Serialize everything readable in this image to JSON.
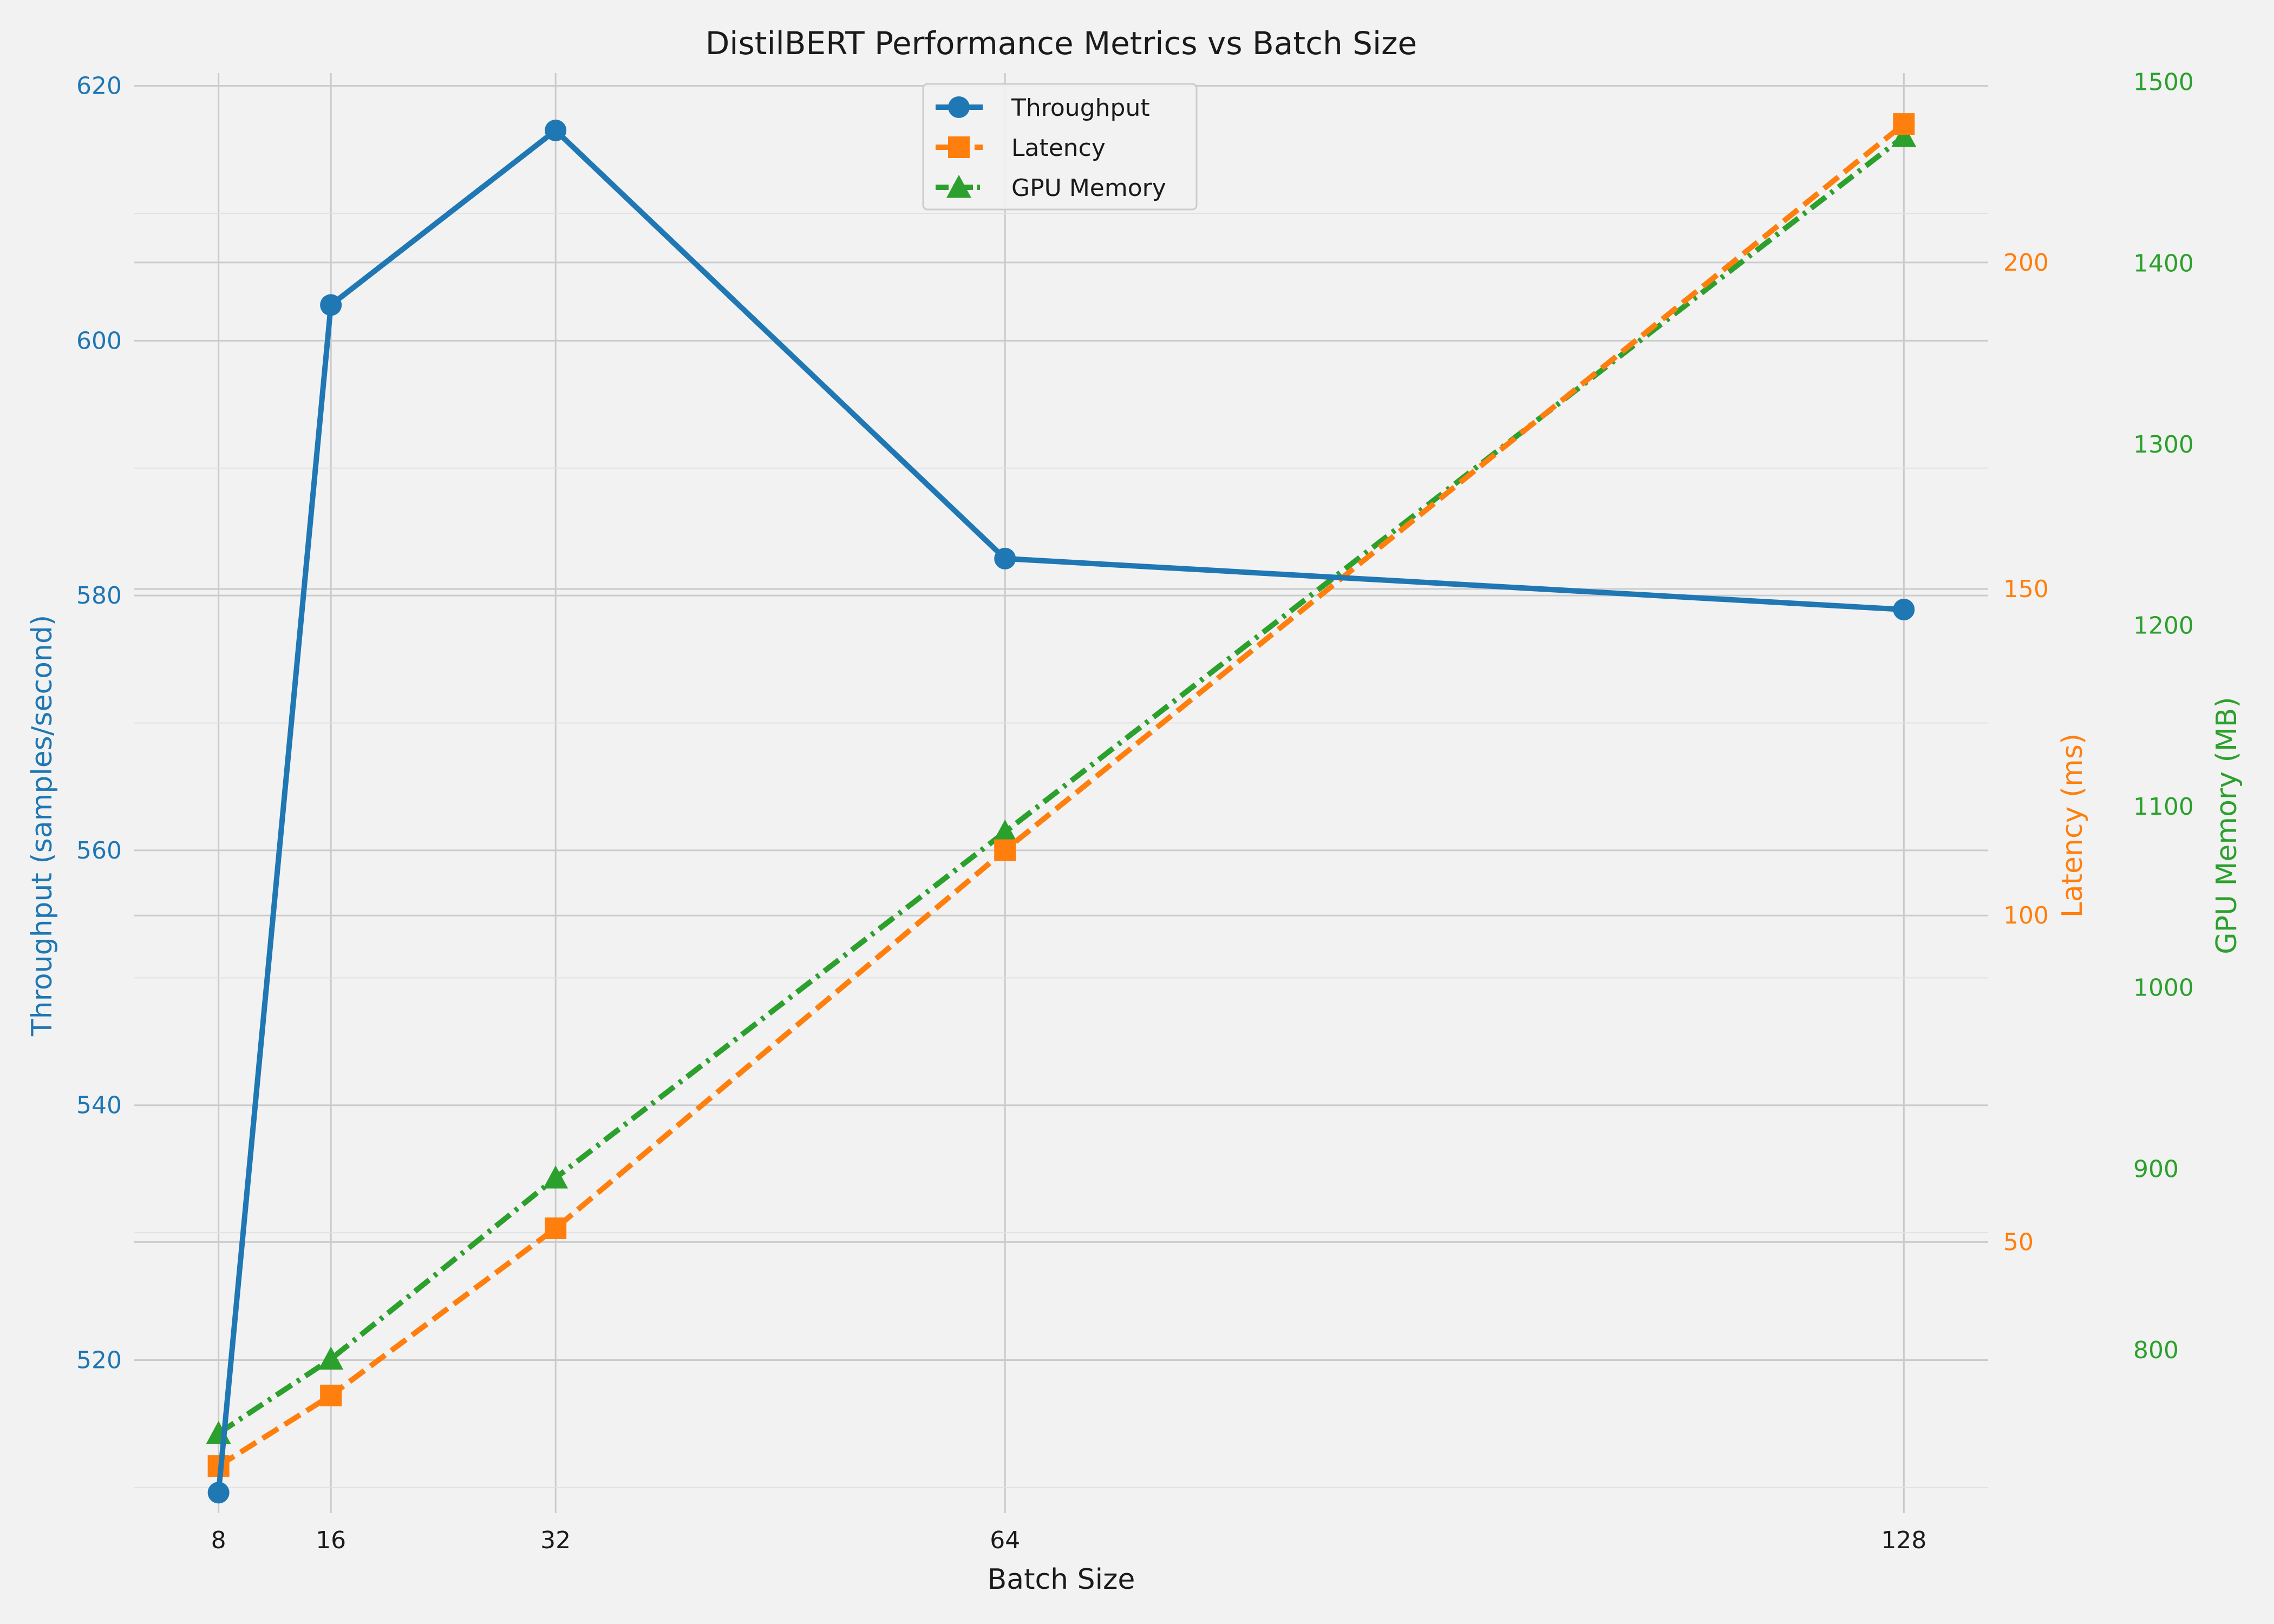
{
  "chart_data": {
    "type": "line",
    "title": "DistilBERT Performance Metrics vs Batch Size",
    "xlabel": "Batch Size",
    "x": [
      8,
      16,
      32,
      64,
      128
    ],
    "x_ticks": [
      "8",
      "16",
      "32",
      "64",
      "128"
    ],
    "xlim": [
      2,
      134
    ],
    "grid": true,
    "legend_position": "top-center",
    "series": [
      {
        "name": "Throughput",
        "axis": "left",
        "ylabel": "Throughput (samples/second)",
        "values": [
          509.6,
          602.8,
          616.5,
          582.9,
          578.9
        ],
        "ylim": [
          508,
          621
        ],
        "ticks": [
          520,
          540,
          560,
          580,
          600,
          620
        ],
        "color": "#1f77b4",
        "marker": "circle",
        "linestyle": "solid"
      },
      {
        "name": "Latency",
        "axis": "right1",
        "ylabel": "Latency (ms)",
        "values": [
          15.7,
          26.5,
          52.1,
          110.0,
          221.2
        ],
        "ylim": [
          8.5,
          229
        ],
        "ticks": [
          50,
          100,
          150,
          200
        ],
        "color": "#ff7f0e",
        "marker": "square",
        "linestyle": "dashed"
      },
      {
        "name": "GPU Memory",
        "axis": "right2",
        "ylabel": "GPU Memory (MB)",
        "values": [
          754,
          795,
          895,
          1086,
          1470
        ],
        "ylim": [
          710,
          1505
        ],
        "ticks": [
          800,
          900,
          1000,
          1100,
          1200,
          1300,
          1400,
          1500
        ],
        "color": "#2ca02c",
        "marker": "triangle",
        "linestyle": "dashdot"
      }
    ]
  }
}
